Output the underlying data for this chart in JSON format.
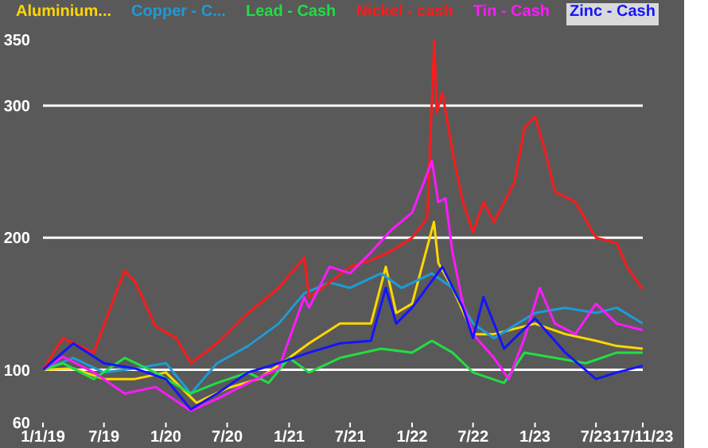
{
  "chart_data": {
    "type": "line",
    "legend": "top",
    "grid": "y",
    "marker": "none",
    "line_style": "solid",
    "xlim": [
      "2019-01-01",
      "2023-11-17"
    ],
    "xticks": [
      {
        "value": "2019-01-01",
        "label": "1/1/19"
      },
      {
        "value": "2019-07-01",
        "label": "7/19"
      },
      {
        "value": "2020-01-01",
        "label": "1/20"
      },
      {
        "value": "2020-07-01",
        "label": "7/20"
      },
      {
        "value": "2021-01-01",
        "label": "1/21"
      },
      {
        "value": "2021-07-01",
        "label": "7/21"
      },
      {
        "value": "2022-01-01",
        "label": "1/22"
      },
      {
        "value": "2022-07-01",
        "label": "7/22"
      },
      {
        "value": "2023-01-01",
        "label": "1/23"
      },
      {
        "value": "2023-07-01",
        "label": "7/23"
      },
      {
        "value": "2023-11-17",
        "label": "17/11/23"
      }
    ],
    "ylim": [
      60,
      350
    ],
    "yticks": [
      60,
      100,
      200,
      300,
      350
    ],
    "series": [
      {
        "name": "Aluminium...",
        "color": "#ffd700",
        "x": [
          "2019-01-01",
          "2019-04-01",
          "2019-07-01",
          "2019-10-01",
          "2020-01-01",
          "2020-04-01",
          "2020-07-01",
          "2020-10-01",
          "2021-01-01",
          "2021-03-01",
          "2021-06-01",
          "2021-09-01",
          "2021-10-15",
          "2021-11-15",
          "2022-01-01",
          "2022-03-07",
          "2022-03-20",
          "2022-05-01",
          "2022-07-01",
          "2022-09-01",
          "2023-01-01",
          "2023-04-01",
          "2023-07-01",
          "2023-09-01",
          "2023-11-17"
        ],
        "values": [
          100,
          101,
          93,
          93,
          98,
          75,
          86,
          93,
          109,
          120,
          135,
          135,
          178,
          143,
          150,
          212,
          181,
          162,
          127,
          127,
          135,
          127,
          122,
          118,
          116
        ]
      },
      {
        "name": "Copper - C...",
        "color": "#1e9bd7",
        "x": [
          "2019-01-01",
          "2019-04-01",
          "2019-07-01",
          "2019-10-01",
          "2020-01-01",
          "2020-03-15",
          "2020-06-01",
          "2020-09-01",
          "2020-12-01",
          "2021-02-15",
          "2021-05-01",
          "2021-07-01",
          "2021-10-01",
          "2021-12-01",
          "2022-03-01",
          "2022-05-01",
          "2022-07-01",
          "2022-09-01",
          "2023-01-01",
          "2023-04-01",
          "2023-07-01",
          "2023-09-01",
          "2023-11-17"
        ],
        "values": [
          100,
          109,
          98,
          101,
          105,
          82,
          105,
          118,
          135,
          158,
          166,
          162,
          173,
          162,
          173,
          162,
          135,
          124,
          143,
          147,
          143,
          147,
          135
        ]
      },
      {
        "name": "Lead - Cash",
        "color": "#22dd44",
        "x": [
          "2019-01-01",
          "2019-03-01",
          "2019-06-01",
          "2019-09-01",
          "2019-12-01",
          "2020-03-15",
          "2020-06-01",
          "2020-09-01",
          "2020-11-01",
          "2021-01-01",
          "2021-03-01",
          "2021-06-01",
          "2021-10-01",
          "2022-01-01",
          "2022-03-01",
          "2022-05-01",
          "2022-07-01",
          "2022-10-01",
          "2022-12-01",
          "2023-03-01",
          "2023-06-01",
          "2023-09-01",
          "2023-11-17"
        ],
        "values": [
          100,
          105,
          93,
          109,
          98,
          82,
          90,
          98,
          90,
          109,
          98,
          109,
          116,
          113,
          122,
          113,
          98,
          90,
          113,
          109,
          105,
          113,
          113
        ]
      },
      {
        "name": "Nickel - cash",
        "color": "#ff1a1a",
        "x": [
          "2019-01-01",
          "2019-03-01",
          "2019-06-01",
          "2019-08-01",
          "2019-09-01",
          "2019-10-01",
          "2019-12-01",
          "2020-02-01",
          "2020-03-15",
          "2020-06-01",
          "2020-09-01",
          "2020-12-01",
          "2021-02-15",
          "2021-03-01",
          "2021-05-01",
          "2021-07-01",
          "2021-09-01",
          "2021-11-01",
          "2022-01-01",
          "2022-02-15",
          "2022-03-08",
          "2022-03-15",
          "2022-04-01",
          "2022-05-01",
          "2022-06-01",
          "2022-07-01",
          "2022-08-01",
          "2022-09-01",
          "2022-11-01",
          "2022-12-01",
          "2023-01-01",
          "2023-02-01",
          "2023-03-01",
          "2023-05-01",
          "2023-07-01",
          "2023-09-01",
          "2023-10-01",
          "2023-11-17"
        ],
        "values": [
          100,
          124,
          113,
          155,
          175,
          167,
          133,
          124,
          105,
          120,
          143,
          162,
          185,
          155,
          166,
          178,
          183,
          190,
          200,
          215,
          350,
          295,
          310,
          265,
          227,
          204,
          227,
          212,
          242,
          284,
          292,
          265,
          235,
          227,
          200,
          196,
          178,
          161
        ]
      },
      {
        "name": "Tin - Cash",
        "color": "#ff1aff",
        "x": [
          "2019-01-01",
          "2019-03-01",
          "2019-06-01",
          "2019-09-01",
          "2019-12-01",
          "2020-03-15",
          "2020-06-01",
          "2020-09-01",
          "2020-12-01",
          "2021-02-15",
          "2021-03-01",
          "2021-05-01",
          "2021-07-01",
          "2021-09-01",
          "2021-11-01",
          "2022-01-01",
          "2022-03-01",
          "2022-03-20",
          "2022-04-10",
          "2022-05-01",
          "2022-06-01",
          "2022-07-01",
          "2022-09-01",
          "2022-10-15",
          "2022-12-01",
          "2023-01-15",
          "2023-03-01",
          "2023-05-01",
          "2023-07-01",
          "2023-09-01",
          "2023-11-17"
        ],
        "values": [
          100,
          110,
          98,
          82,
          87,
          69,
          78,
          90,
          101,
          155,
          147,
          178,
          173,
          189,
          206,
          219,
          258,
          227,
          230,
          189,
          150,
          127,
          109,
          93,
          124,
          162,
          135,
          127,
          150,
          135,
          130
        ]
      },
      {
        "name": "Zinc - Cash",
        "color": "#1414ff",
        "x": [
          "2019-01-01",
          "2019-04-01",
          "2019-07-01",
          "2019-10-01",
          "2020-01-01",
          "2020-03-15",
          "2020-06-01",
          "2020-09-01",
          "2020-12-01",
          "2021-03-01",
          "2021-06-01",
          "2021-09-01",
          "2021-10-15",
          "2021-11-15",
          "2022-01-01",
          "2022-04-01",
          "2022-06-01",
          "2022-07-01",
          "2022-08-01",
          "2022-10-01",
          "2023-01-01",
          "2023-04-01",
          "2023-07-01",
          "2023-09-01",
          "2023-11-17"
        ],
        "values": [
          100,
          120,
          105,
          101,
          93,
          70,
          82,
          98,
          105,
          113,
          120,
          122,
          162,
          135,
          147,
          178,
          147,
          124,
          155,
          116,
          139,
          113,
          93,
          98,
          103
        ]
      }
    ]
  }
}
